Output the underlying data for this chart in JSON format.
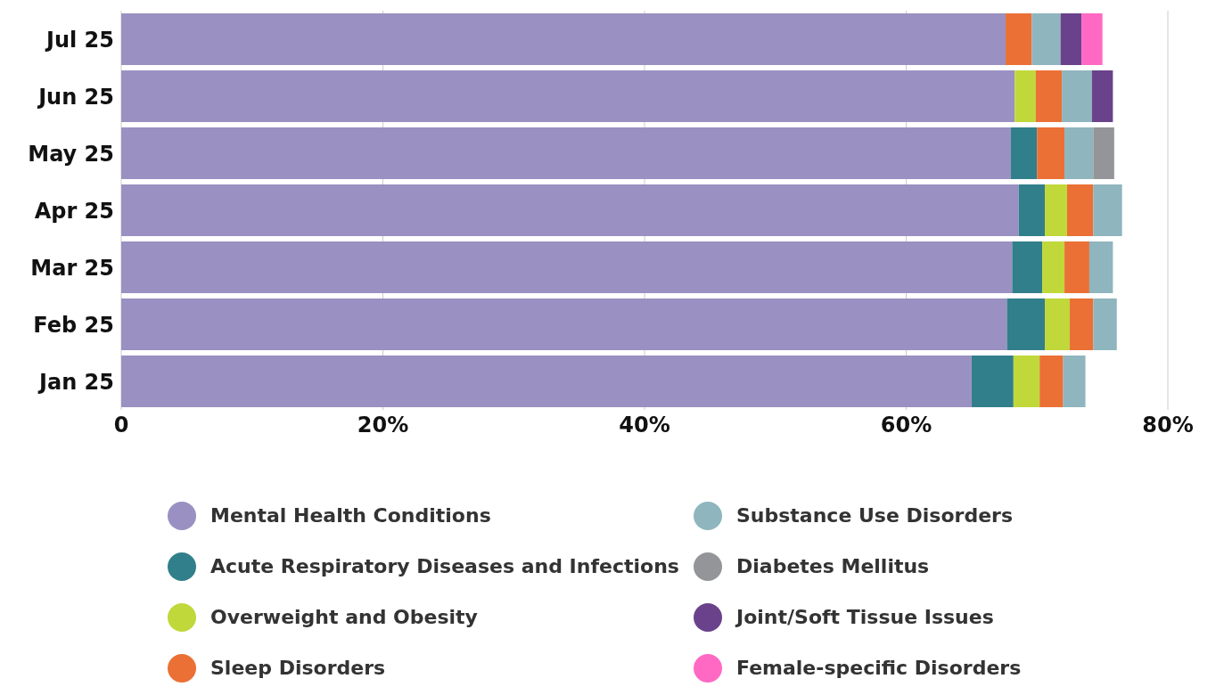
{
  "chart_data": {
    "type": "bar",
    "orientation": "horizontal",
    "stacked": true,
    "categories": [
      "Jul 25",
      "Jun 25",
      "May 25",
      "Apr 25",
      "Mar 25",
      "Feb 25",
      "Jan 25"
    ],
    "series": [
      {
        "name": "Mental Health Conditions",
        "color": "#9a90c2",
        "values": [
          67.6,
          68.3,
          68.0,
          68.6,
          68.1,
          67.7,
          65.0
        ]
      },
      {
        "name": "Acute Respiratory Diseases and Infections",
        "color": "#317f8b",
        "values": [
          null,
          null,
          2.0,
          2.0,
          2.3,
          2.9,
          3.2
        ]
      },
      {
        "name": "Overweight and Obesity",
        "color": "#c0d83a",
        "values": [
          null,
          1.6,
          null,
          1.7,
          1.7,
          1.9,
          2.0
        ]
      },
      {
        "name": "Sleep Disorders",
        "color": "#eb7035",
        "values": [
          2.0,
          2.0,
          2.1,
          2.0,
          1.9,
          1.8,
          1.8
        ]
      },
      {
        "name": "Substance Use Disorders",
        "color": "#8fb5be",
        "values": [
          2.2,
          2.3,
          2.2,
          2.2,
          1.8,
          1.8,
          1.7
        ]
      },
      {
        "name": "Diabetes Mellitus",
        "color": "#939598",
        "values": [
          null,
          null,
          1.6,
          null,
          null,
          null,
          null
        ]
      },
      {
        "name": "Joint/Soft Tissue Issues",
        "color": "#6a428b",
        "values": [
          1.6,
          1.6,
          null,
          null,
          null,
          null,
          null
        ]
      },
      {
        "name": "Female-specific Disorders",
        "color": "#ff69c4",
        "values": [
          1.6,
          null,
          null,
          null,
          null,
          null,
          null
        ]
      }
    ],
    "xlim": [
      0,
      80
    ],
    "xticks": [
      {
        "value": 0,
        "label": "0"
      },
      {
        "value": 20,
        "label": "20%"
      },
      {
        "value": 40,
        "label": "40%"
      },
      {
        "value": 60,
        "label": "60%"
      },
      {
        "value": 80,
        "label": "80%"
      }
    ],
    "grid": "x",
    "legend": "bottom"
  }
}
